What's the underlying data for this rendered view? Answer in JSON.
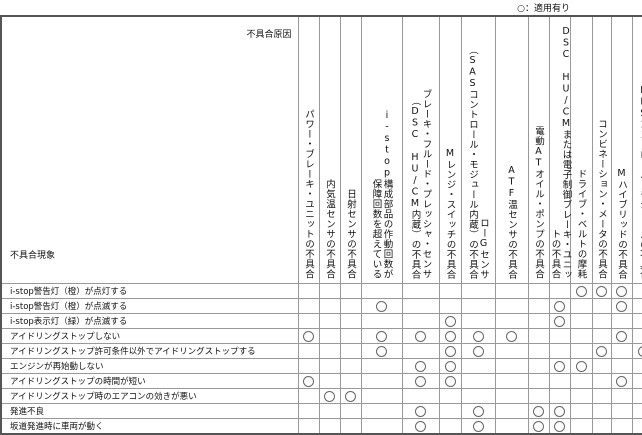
{
  "legend": "○：適用有り",
  "header": {
    "cause_title": "不具合原因",
    "symptom_title": "不具合現象"
  },
  "causes": [
    "パワー・ブレーキ・ユニットの不具合",
    "内気温センサの不具合",
    "日射センサの不具合",
    "i-stop構成部品の作動回数が\n保障回数を超えている",
    "ブレーキ・フルード・プレッシャ・センサ\n（DSC HU/CM内蔵）の不具合",
    "Mレンジ・スイッチの不具合",
    "ローGセンサ\n（SASコントロール・モジュール内蔵）の不具合",
    "ATF温センサの不具合",
    "電動ATオイル・ポンプの不具合",
    "DSC HU/CMまたは電子制御ブレーキ・ユニットの不具合",
    "ドライブ・ベルトの摩耗",
    "コンビネーション・メータの不具合",
    "Mハイブリッドの不具合",
    "EPSコントロール・モジュールの不具合"
  ],
  "rows": [
    {
      "symptom": "i-stop警告灯（橙）が点灯する",
      "marks": [
        11,
        12,
        13
      ]
    },
    {
      "symptom": "i-stop警告灯（橙）が点滅する",
      "marks": [
        4,
        10,
        13
      ]
    },
    {
      "symptom": "i-stop表示灯（緑）が点滅する",
      "marks": [
        6,
        10
      ]
    },
    {
      "symptom": "アイドリングストップしない",
      "marks": [
        1,
        4,
        5,
        6,
        7,
        8,
        13
      ]
    },
    {
      "symptom": "アイドリングストップ許可条件以外でアイドリングストップする",
      "marks": [
        4,
        6,
        7,
        12,
        14
      ]
    },
    {
      "symptom": "エンジンが再始動しない",
      "marks": [
        5,
        6,
        10,
        11
      ]
    },
    {
      "symptom": "アイドリングストップの時間が短い",
      "marks": [
        1,
        5,
        6,
        13
      ]
    },
    {
      "symptom": "アイドリングストップ時のエアコンの効きが悪い",
      "marks": [
        2,
        3
      ]
    },
    {
      "symptom": "発進不良",
      "marks": [
        5,
        7,
        9,
        10
      ]
    },
    {
      "symptom": "坂道発進時に車両が動く",
      "marks": [
        5,
        7,
        9,
        10
      ]
    }
  ]
}
